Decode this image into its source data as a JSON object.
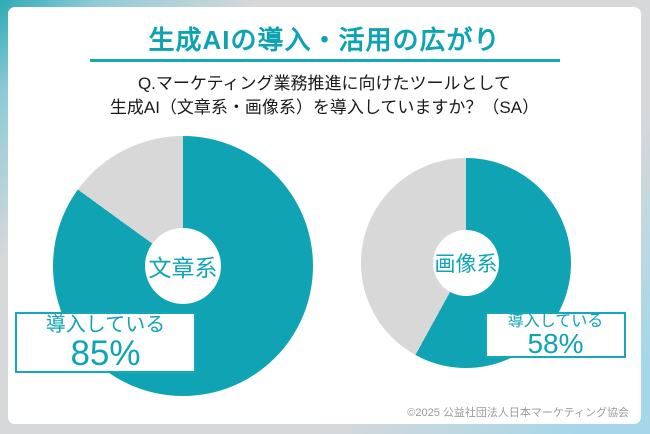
{
  "page": {
    "title": "生成AIの導入・活用の広がり",
    "question_line1": "Q.マーケティング業務推進に向けたツールとして",
    "question_line2": "生成AI（文章系・画像系）を導入していますか？（SA）",
    "footer": "©2025 公益社団法人日本マーケティング協会"
  },
  "colors": {
    "accent_teal": "#10A3B3",
    "slice_remainder_gray": "#D8D8D8",
    "frame_teal": "#2EA9B5",
    "frame_gray": "#D6D8DA",
    "frame_light_blue": "#A6D7E8"
  },
  "chart_data": [
    {
      "type": "pie",
      "title": "文章系",
      "donut": true,
      "start_angle_deg": 0,
      "direction": "clockwise",
      "unit": "%",
      "series": [
        {
          "name": "導入している",
          "value": 85,
          "color": "#10A3B3"
        },
        {
          "name": "",
          "value": 15,
          "color": "#D8D8D8"
        }
      ],
      "callout": {
        "label": "導入している",
        "value": "85%"
      }
    },
    {
      "type": "pie",
      "title": "画像系",
      "donut": true,
      "start_angle_deg": 0,
      "direction": "clockwise",
      "unit": "%",
      "series": [
        {
          "name": "導入している",
          "value": 58,
          "color": "#10A3B3"
        },
        {
          "name": "",
          "value": 42,
          "color": "#D8D8D8"
        }
      ],
      "callout": {
        "label": "導入している",
        "value": "58%"
      }
    }
  ]
}
